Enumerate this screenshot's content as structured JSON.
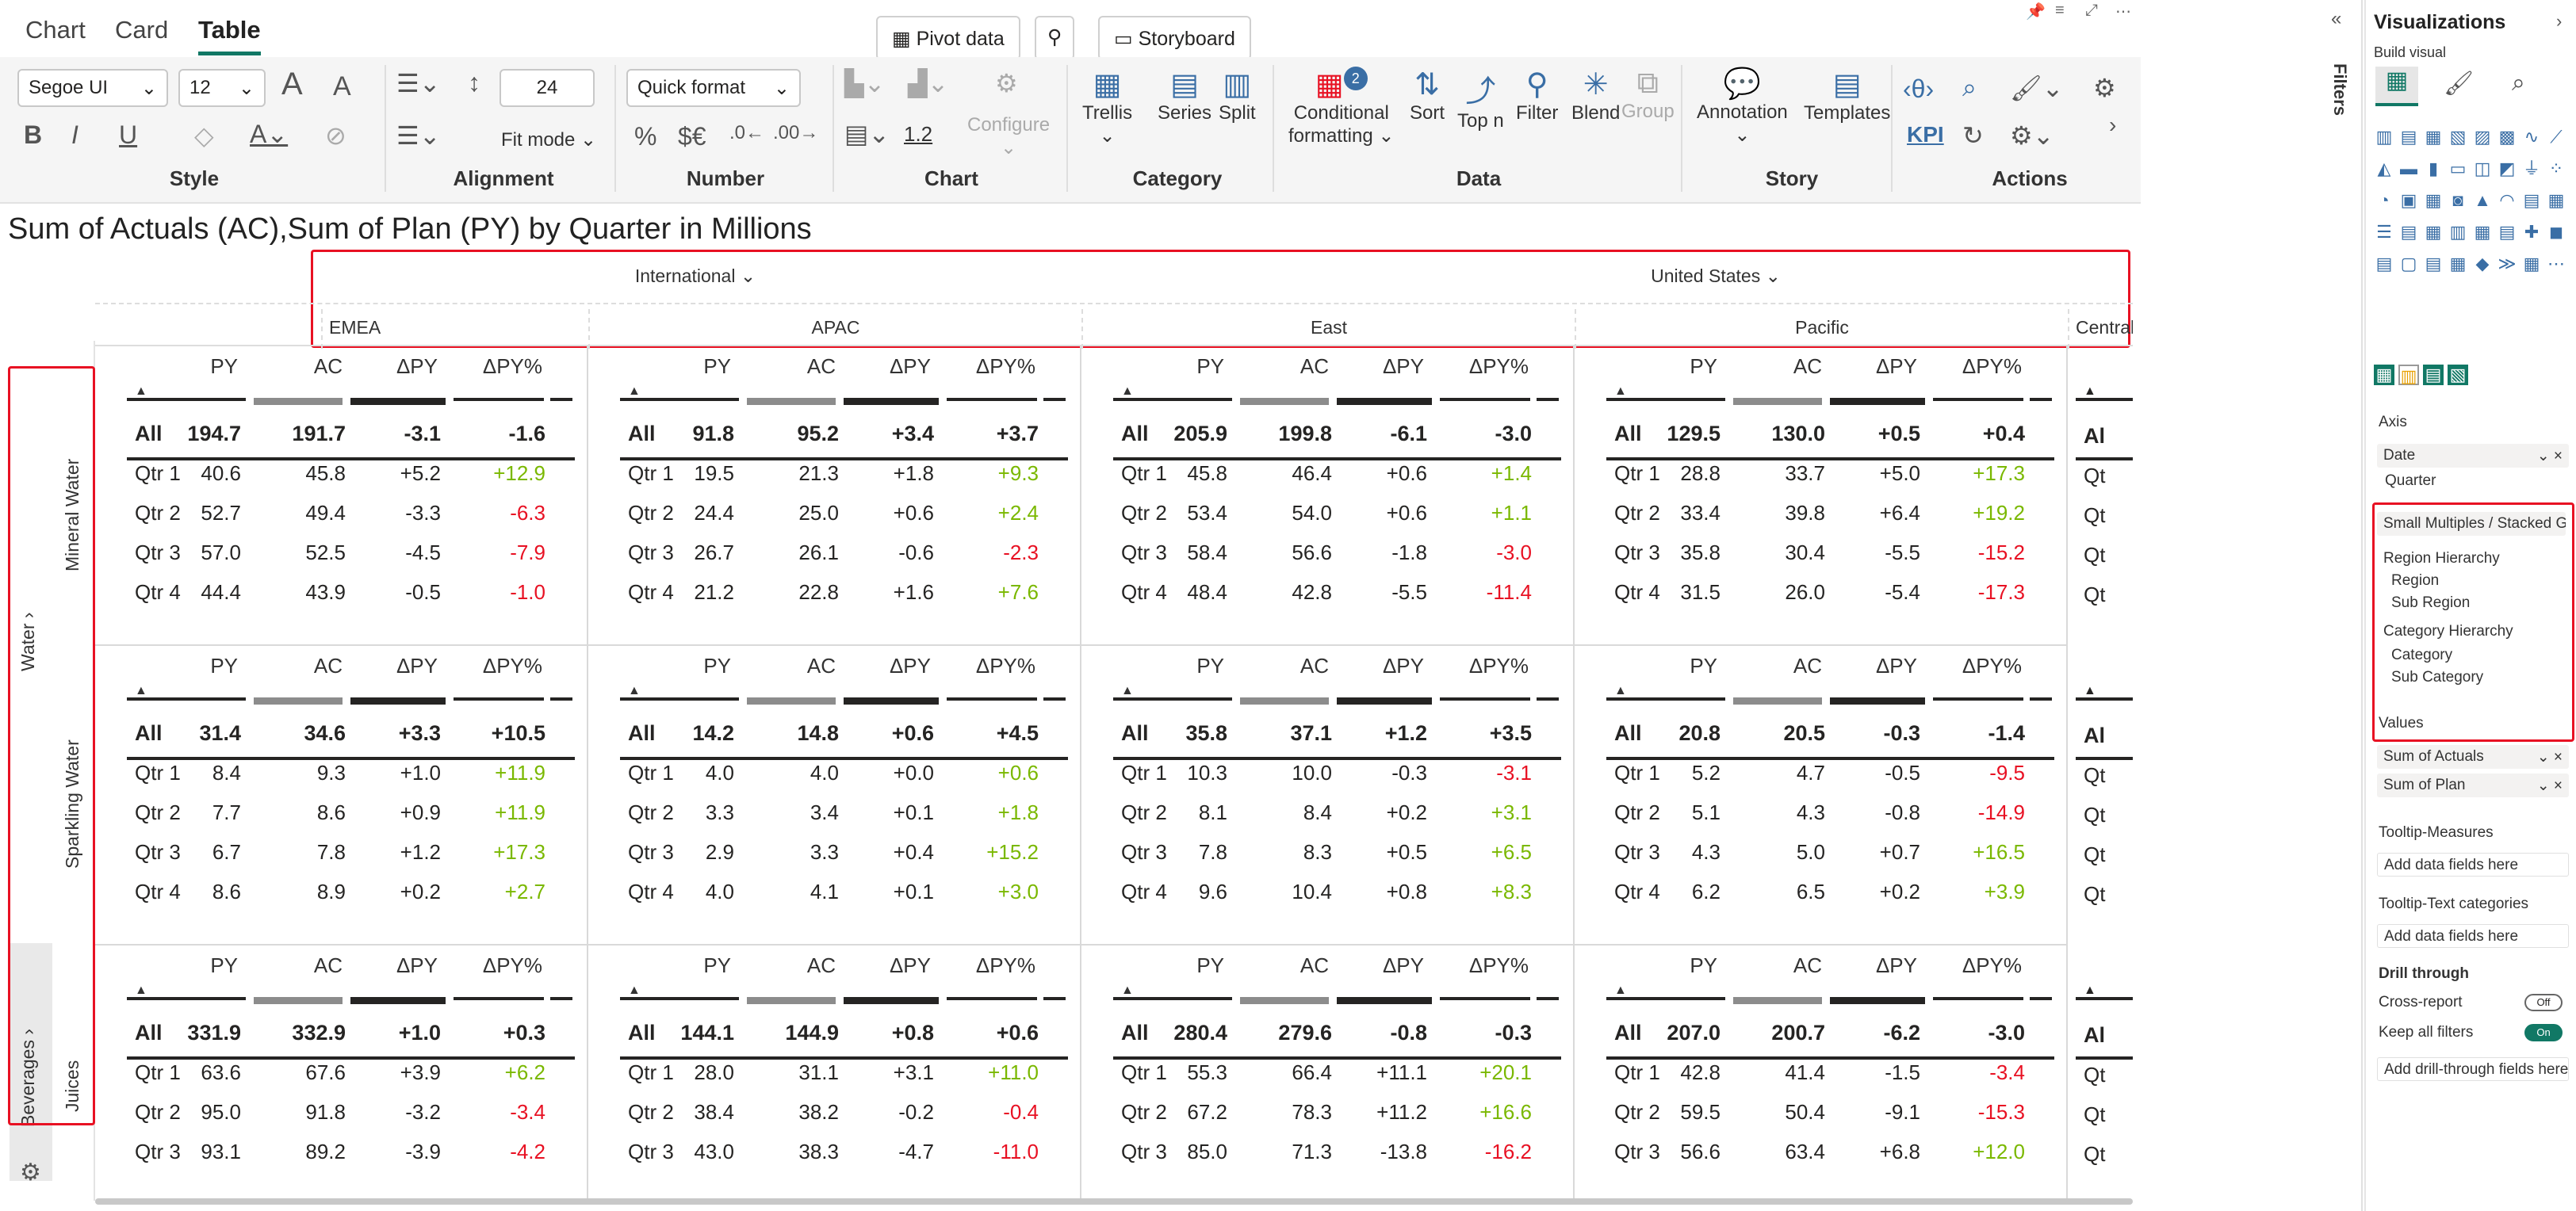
{
  "tabs": {
    "chart": "Chart",
    "card": "Card",
    "table": "Table"
  },
  "top_buttons": {
    "pivot": "Pivot data",
    "storyboard": "Storyboard"
  },
  "ribbon": {
    "font_family": "Segoe UI",
    "font_size": "12",
    "row_height": "24",
    "quick_format": "Quick format",
    "fit_mode": "Fit mode",
    "chart_value": "1.2",
    "configure": "Configure",
    "trellis": "Trellis",
    "series": "Series",
    "split": "Split",
    "conditional": "Conditional",
    "formatting": "formatting",
    "cond_badge": "2",
    "sort": "Sort",
    "topn": "Top n",
    "filter": "Filter",
    "blend": "Blend",
    "group": "Group",
    "annotation": "Annotation",
    "templates": "Templates",
    "kpi": "KPI",
    "groups": {
      "style": "Style",
      "alignment": "Alignment",
      "number": "Number",
      "chart": "Chart",
      "category": "Category",
      "data": "Data",
      "story": "Story",
      "actions": "Actions"
    }
  },
  "title": "Sum of Actuals (AC),Sum of Plan (PY) by Quarter in Millions",
  "regions": [
    {
      "name": "International",
      "subs": [
        "EMEA",
        "APAC"
      ]
    },
    {
      "name": "United States",
      "subs": [
        "East",
        "Pacific",
        "Central"
      ]
    }
  ],
  "columns": [
    "PY",
    "AC",
    "ΔPY",
    "ΔPY%"
  ],
  "row_labels": [
    "All",
    "Qtr 1",
    "Qtr 2",
    "Qtr 3",
    "Qtr 4"
  ],
  "left_headers": {
    "water": "Water",
    "beverages": "Beverages",
    "mineral": "Mineral Water",
    "sparkling": "Sparkling Water",
    "juices": "Juices"
  },
  "panels": [
    [
      [
        [
          "194.7",
          "191.7",
          "-3.1",
          "-1.6"
        ],
        [
          "40.6",
          "45.8",
          "+5.2",
          "+12.9"
        ],
        [
          "52.7",
          "49.4",
          "-3.3",
          "-6.3"
        ],
        [
          "57.0",
          "52.5",
          "-4.5",
          "-7.9"
        ],
        [
          "44.4",
          "43.9",
          "-0.5",
          "-1.0"
        ]
      ],
      [
        [
          "91.8",
          "95.2",
          "+3.4",
          "+3.7"
        ],
        [
          "19.5",
          "21.3",
          "+1.8",
          "+9.3"
        ],
        [
          "24.4",
          "25.0",
          "+0.6",
          "+2.4"
        ],
        [
          "26.7",
          "26.1",
          "-0.6",
          "-2.3"
        ],
        [
          "21.2",
          "22.8",
          "+1.6",
          "+7.6"
        ]
      ],
      [
        [
          "205.9",
          "199.8",
          "-6.1",
          "-3.0"
        ],
        [
          "45.8",
          "46.4",
          "+0.6",
          "+1.4"
        ],
        [
          "53.4",
          "54.0",
          "+0.6",
          "+1.1"
        ],
        [
          "58.4",
          "56.6",
          "-1.8",
          "-3.0"
        ],
        [
          "48.4",
          "42.8",
          "-5.5",
          "-11.4"
        ]
      ],
      [
        [
          "129.5",
          "130.0",
          "+0.5",
          "+0.4"
        ],
        [
          "28.8",
          "33.7",
          "+5.0",
          "+17.3"
        ],
        [
          "33.4",
          "39.8",
          "+6.4",
          "+19.2"
        ],
        [
          "35.8",
          "30.4",
          "-5.5",
          "-15.2"
        ],
        [
          "31.5",
          "26.0",
          "-5.4",
          "-17.3"
        ]
      ]
    ],
    [
      [
        [
          "31.4",
          "34.6",
          "+3.3",
          "+10.5"
        ],
        [
          "8.4",
          "9.3",
          "+1.0",
          "+11.9"
        ],
        [
          "7.7",
          "8.6",
          "+0.9",
          "+11.9"
        ],
        [
          "6.7",
          "7.8",
          "+1.2",
          "+17.3"
        ],
        [
          "8.6",
          "8.9",
          "+0.2",
          "+2.7"
        ]
      ],
      [
        [
          "14.2",
          "14.8",
          "+0.6",
          "+4.5"
        ],
        [
          "4.0",
          "4.0",
          "+0.0",
          "+0.6"
        ],
        [
          "3.3",
          "3.4",
          "+0.1",
          "+1.8"
        ],
        [
          "2.9",
          "3.3",
          "+0.4",
          "+15.2"
        ],
        [
          "4.0",
          "4.1",
          "+0.1",
          "+3.0"
        ]
      ],
      [
        [
          "35.8",
          "37.1",
          "+1.2",
          "+3.5"
        ],
        [
          "10.3",
          "10.0",
          "-0.3",
          "-3.1"
        ],
        [
          "8.1",
          "8.4",
          "+0.2",
          "+3.1"
        ],
        [
          "7.8",
          "8.3",
          "+0.5",
          "+6.5"
        ],
        [
          "9.6",
          "10.4",
          "+0.8",
          "+8.3"
        ]
      ],
      [
        [
          "20.8",
          "20.5",
          "-0.3",
          "-1.4"
        ],
        [
          "5.2",
          "4.7",
          "-0.5",
          "-9.5"
        ],
        [
          "5.1",
          "4.3",
          "-0.8",
          "-14.9"
        ],
        [
          "4.3",
          "5.0",
          "+0.7",
          "+16.5"
        ],
        [
          "6.2",
          "6.5",
          "+0.2",
          "+3.9"
        ]
      ]
    ],
    [
      [
        [
          "331.9",
          "332.9",
          "+1.0",
          "+0.3"
        ],
        [
          "63.6",
          "67.6",
          "+3.9",
          "+6.2"
        ],
        [
          "95.0",
          "91.8",
          "-3.2",
          "-3.4"
        ],
        [
          "93.1",
          "89.2",
          "-3.9",
          "-4.2"
        ]
      ],
      [
        [
          "144.1",
          "144.9",
          "+0.8",
          "+0.6"
        ],
        [
          "28.0",
          "31.1",
          "+3.1",
          "+11.0"
        ],
        [
          "38.4",
          "38.2",
          "-0.2",
          "-0.4"
        ],
        [
          "43.0",
          "38.3",
          "-4.7",
          "-11.0"
        ]
      ],
      [
        [
          "280.4",
          "279.6",
          "-0.8",
          "-0.3"
        ],
        [
          "55.3",
          "66.4",
          "+11.1",
          "+20.1"
        ],
        [
          "67.2",
          "78.3",
          "+11.2",
          "+16.6"
        ],
        [
          "85.0",
          "71.3",
          "-13.8",
          "-16.2"
        ]
      ],
      [
        [
          "207.0",
          "200.7",
          "-6.2",
          "-3.0"
        ],
        [
          "42.8",
          "41.4",
          "-1.5",
          "-3.4"
        ],
        [
          "59.5",
          "50.4",
          "-9.1",
          "-15.3"
        ],
        [
          "56.6",
          "63.4",
          "+6.8",
          "+12.0"
        ]
      ]
    ]
  ],
  "central_label": "Al",
  "central_q": "Qt",
  "filters_label": "Filters",
  "viz": {
    "title": "Visualizations",
    "build": "Build visual",
    "axis": "Axis",
    "date": "Date",
    "quarter": "Quarter",
    "small_multiples": "Small Multiples / Stacked Gr...",
    "region_hierarchy": "Region Hierarchy",
    "region": "Region",
    "sub_region": "Sub Region",
    "category_hierarchy": "Category Hierarchy",
    "category": "Category",
    "sub_category": "Sub Category",
    "values": "Values",
    "sum_actuals": "Sum of Actuals",
    "sum_plan": "Sum of Plan",
    "tooltip_measures": "Tooltip-Measures",
    "add_fields": "Add data fields here",
    "tooltip_text": "Tooltip-Text categories",
    "add_fields2": "Add data fields here",
    "drill": "Drill through",
    "cross_report": "Cross-report",
    "off": "Off",
    "keep_filters": "Keep all filters",
    "on": "On",
    "add_drill": "Add drill-through fields here"
  },
  "colors": {
    "accent": "#117865",
    "positive": "#7ab800",
    "negative": "#e81123",
    "py_bar": "#8c8c8c",
    "ac_bar": "#252423"
  }
}
